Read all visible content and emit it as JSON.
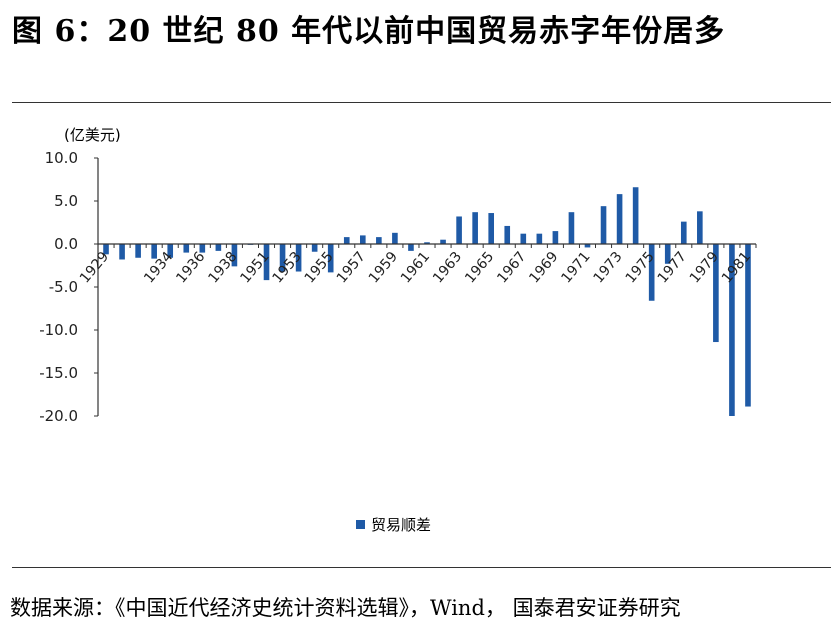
{
  "title": "图 6：20 世纪 80 年代以前中国贸易赤字年份居多",
  "source": "数据来源：《中国近代经济史统计资料选辑》，Wind， 国泰君安证券研究",
  "colors": {
    "bar": "#1f5aa6"
  },
  "chart_data": {
    "type": "bar",
    "title": "",
    "xlabel": "",
    "ylabel": "(亿美元)",
    "ylim": [
      -20,
      10
    ],
    "yticks": [
      10.0,
      5.0,
      0.0,
      -5.0,
      -10.0,
      -15.0,
      -20.0
    ],
    "ytick_labels": [
      "10.0",
      "5.0",
      "0.0",
      "-5.0",
      "-10.0",
      "-15.0",
      "-20.0"
    ],
    "grid": false,
    "legend_position": "bottom",
    "categories": [
      "1929",
      "1930",
      "1931",
      "1932",
      "1934",
      "1935",
      "1936",
      "1937",
      "1938",
      "1950",
      "1951",
      "1952",
      "1953",
      "1954",
      "1955",
      "1956",
      "1957",
      "1958",
      "1959",
      "1960",
      "1961",
      "1962",
      "1963",
      "1964",
      "1965",
      "1966",
      "1967",
      "1968",
      "1969",
      "1970",
      "1971",
      "1972",
      "1973",
      "1974",
      "1975",
      "1976",
      "1977",
      "1978",
      "1979",
      "1980",
      "1981"
    ],
    "x_tick_labels": [
      "1929",
      "1934",
      "1936",
      "1938",
      "1951",
      "1953",
      "1955",
      "1957",
      "1959",
      "1961",
      "1963",
      "1965",
      "1967",
      "1969",
      "1971",
      "1973",
      "1975",
      "1977",
      "1979",
      "1981"
    ],
    "series": [
      {
        "name": "贸易顺差",
        "values": [
          -1.2,
          -1.8,
          -1.6,
          -1.7,
          -1.6,
          -1.0,
          -1.0,
          -0.8,
          -2.6,
          -0.1,
          -4.2,
          -3.2,
          -3.2,
          -0.9,
          -3.3,
          0.8,
          1.0,
          0.8,
          1.3,
          -0.8,
          0.2,
          0.5,
          3.2,
          3.7,
          3.6,
          2.1,
          1.2,
          1.2,
          1.5,
          3.7,
          -0.4,
          4.4,
          5.8,
          6.6,
          -6.6,
          -2.3,
          2.6,
          3.8,
          -11.4,
          -20.0,
          -18.9
        ]
      }
    ]
  }
}
